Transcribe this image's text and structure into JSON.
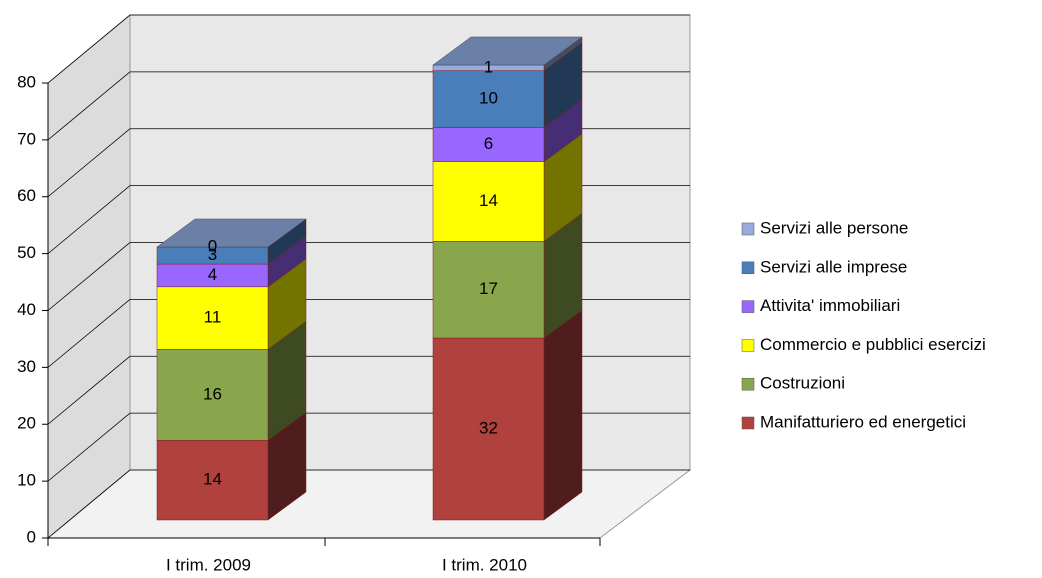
{
  "chart_data": {
    "type": "bar3d_stacked",
    "categories": [
      "I trim. 2009",
      "I trim. 2010"
    ],
    "series": [
      {
        "name": "Manifatturiero ed energetici",
        "color": "#b0413e",
        "values": [
          14,
          32
        ]
      },
      {
        "name": "Costruzioni",
        "color": "#8aa64c",
        "values": [
          16,
          17
        ]
      },
      {
        "name": "Commercio e pubblici esercizi",
        "color": "#ffff00",
        "values": [
          11,
          14
        ]
      },
      {
        "name": "Attivita' immobiliari",
        "color": "#9966ff",
        "values": [
          4,
          6
        ]
      },
      {
        "name": "Servizi alle imprese",
        "color": "#4a7ebb",
        "values": [
          3,
          10
        ]
      },
      {
        "name": "Servizi alle persone",
        "color": "#99aadd",
        "values": [
          0,
          1
        ]
      }
    ],
    "ylim": [
      0,
      80
    ],
    "yticks": [
      0,
      10,
      20,
      30,
      40,
      50,
      60,
      70,
      80
    ],
    "grid": true,
    "legend": "right"
  }
}
